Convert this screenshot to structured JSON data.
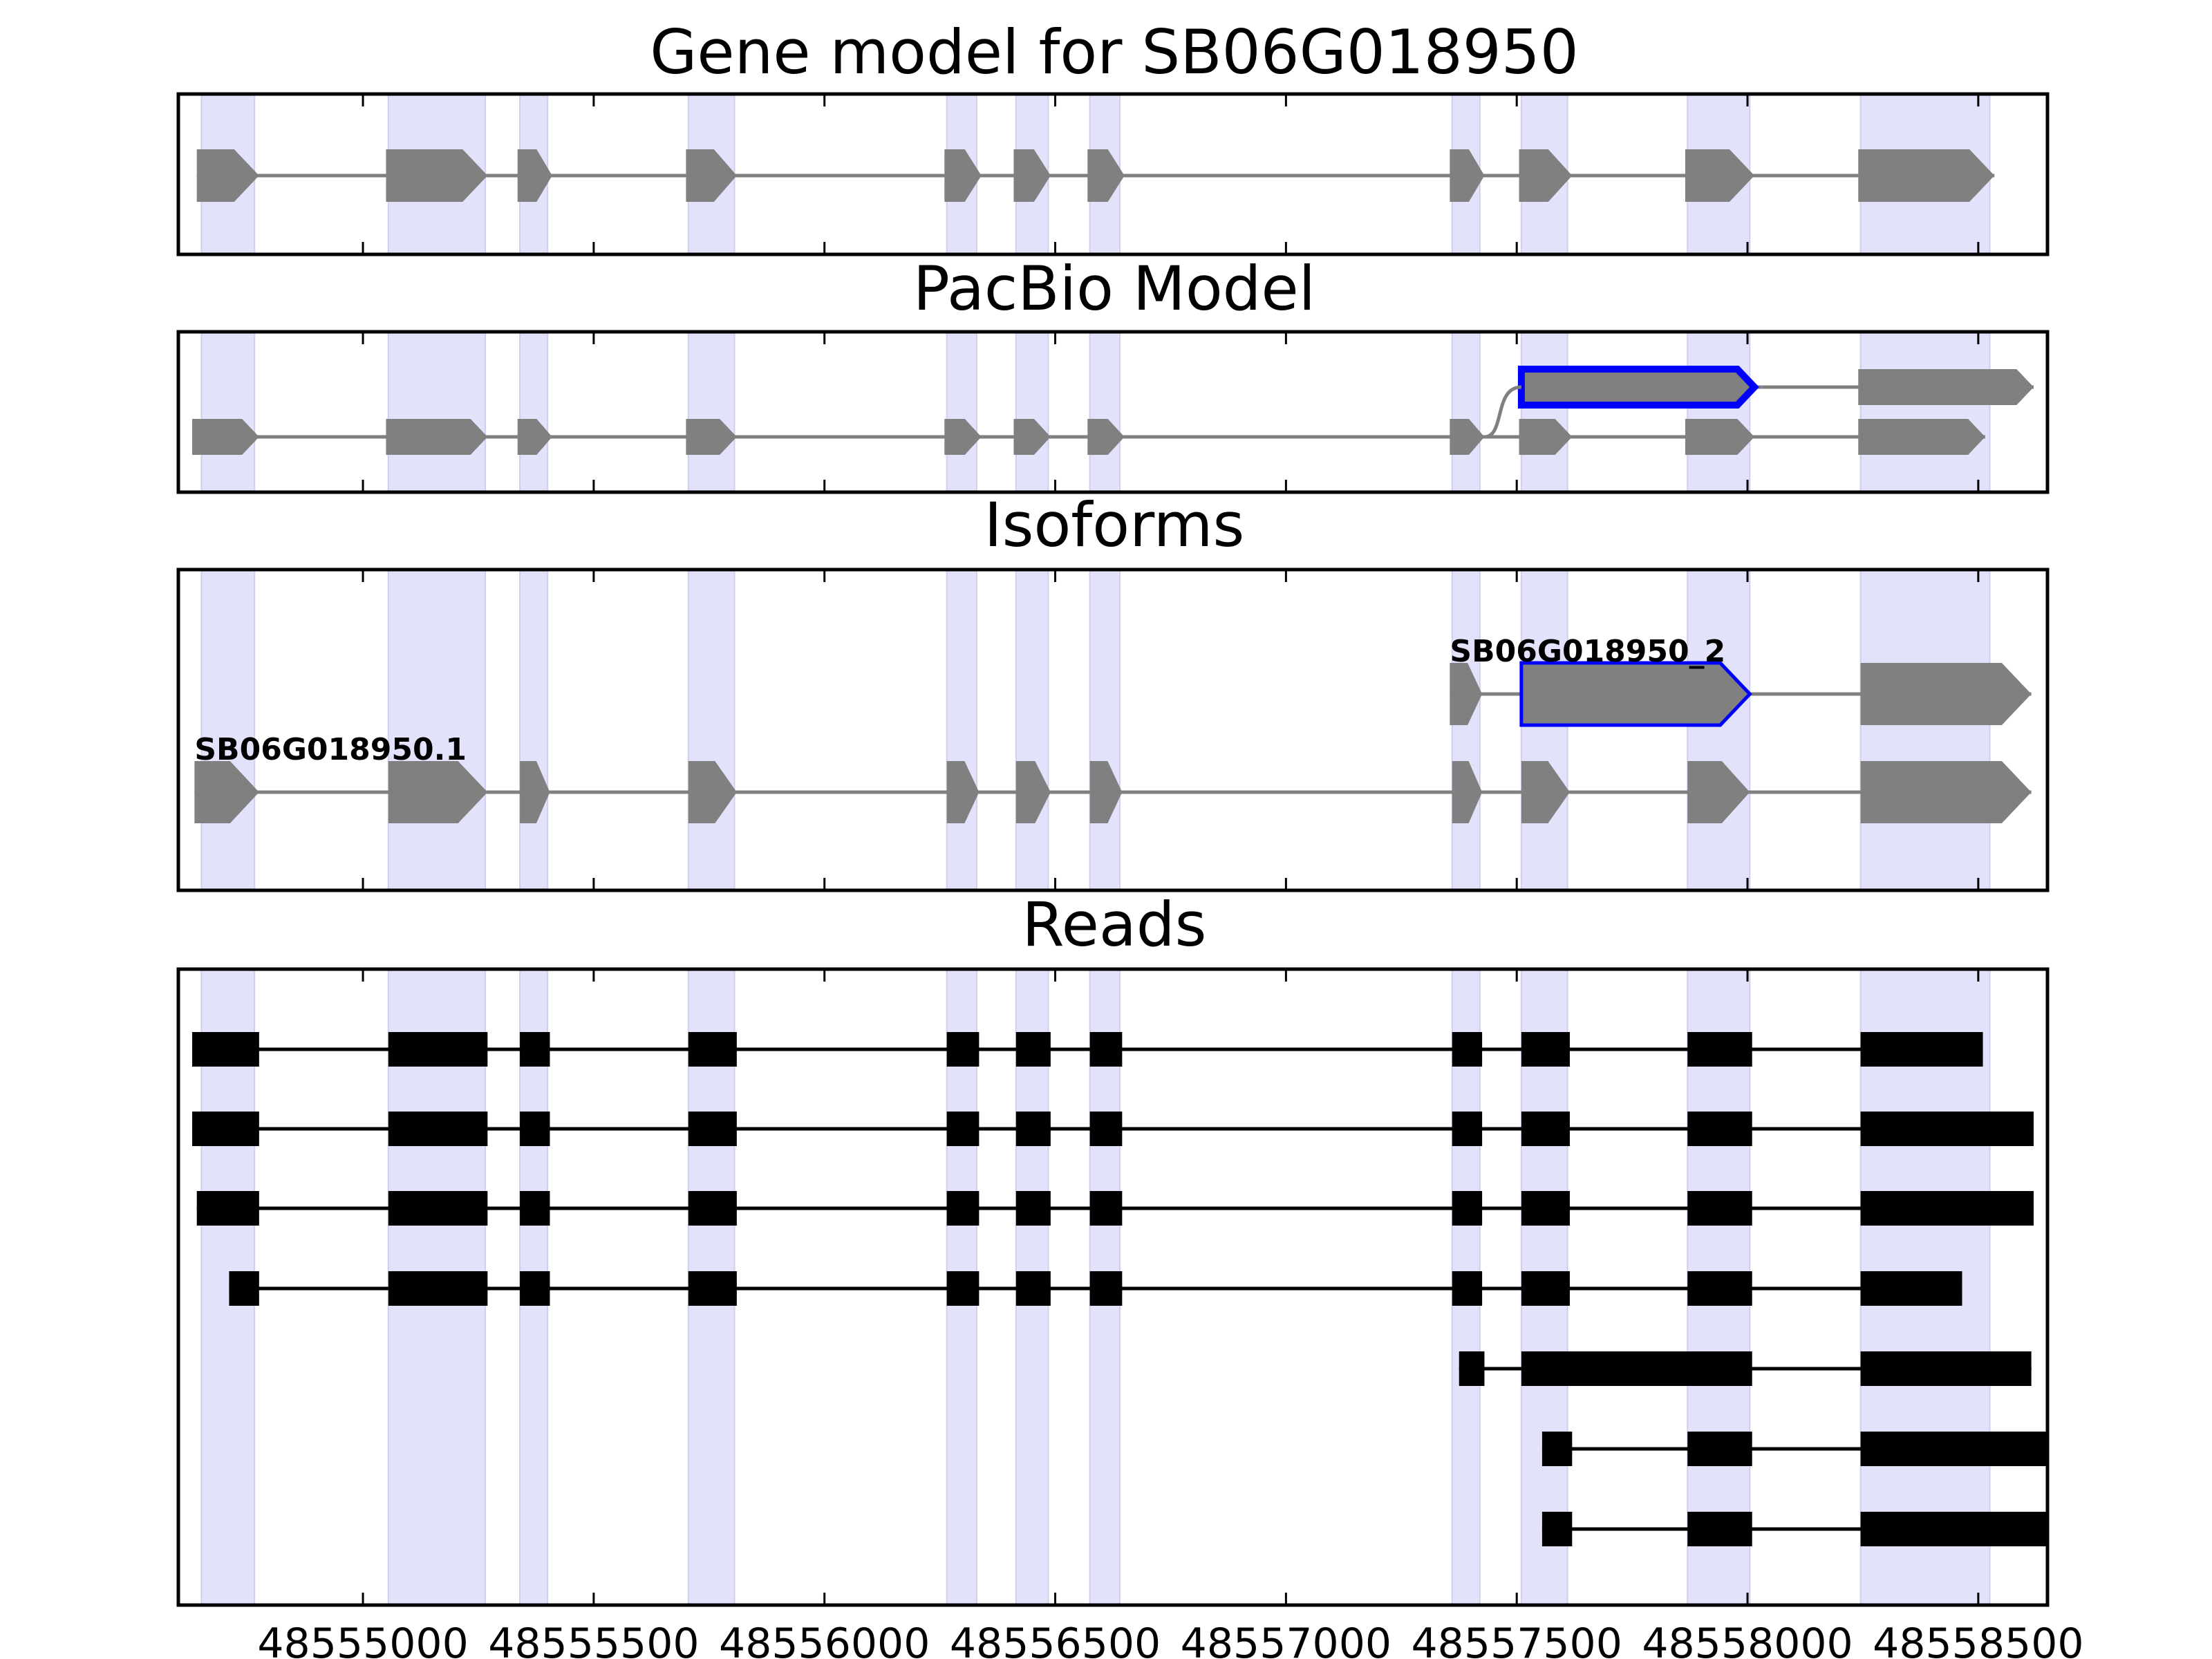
{
  "chart_data": {
    "type": "diagram",
    "x_axis": {
      "range": [
        48554600,
        48558650
      ],
      "ticks": [
        48555000,
        48555500,
        48556000,
        48556500,
        48557000,
        48557500,
        48558000,
        48558500
      ],
      "tick_labels": [
        "48555000",
        "48555500",
        "48556000",
        "48556500",
        "48557000",
        "48557500",
        "48558000",
        "48558500"
      ]
    },
    "colors": {
      "exon_region": "#e2e2fb",
      "gene_feature": "#808080",
      "highlight_outline": "#0000ff",
      "read": "#000000",
      "frame": "#000000"
    },
    "exon_regions": [
      [
        48554650,
        48554765
      ],
      [
        48555055,
        48555265
      ],
      [
        48555340,
        48555400
      ],
      [
        48555705,
        48555805
      ],
      [
        48556265,
        48556330
      ],
      [
        48556415,
        48556485
      ],
      [
        48556575,
        48556640
      ],
      [
        48557360,
        48557420
      ],
      [
        48557510,
        48557610
      ],
      [
        48557870,
        48558005
      ],
      [
        48558245,
        48558525
      ]
    ],
    "panels": [
      {
        "id": "gene-model",
        "title": "Gene model for SB06G018950",
        "tracks": [
          {
            "label": "",
            "highlight": [],
            "exons": [
              [
                48554640,
                48554775
              ],
              [
                48555050,
                48555270
              ],
              [
                48555335,
                48555410
              ],
              [
                48555700,
                48555810
              ],
              [
                48556260,
                48556340
              ],
              [
                48556410,
                48556490
              ],
              [
                48556570,
                48556650
              ],
              [
                48557355,
                48557430
              ],
              [
                48557505,
                48557620
              ],
              [
                48557865,
                48558015
              ],
              [
                48558240,
                48558535
              ]
            ]
          }
        ]
      },
      {
        "id": "pacbio-model",
        "title": "PacBio Model",
        "tracks": [
          {
            "label": "",
            "highlight": [
              0
            ],
            "exons": [
              [
                48557510,
                48558015
              ],
              [
                48558240,
                48558620
              ]
            ]
          },
          {
            "label": "",
            "highlight": [],
            "exons": [
              [
                48554630,
                48554775
              ],
              [
                48555050,
                48555270
              ],
              [
                48555335,
                48555410
              ],
              [
                48555700,
                48555810
              ],
              [
                48556260,
                48556340
              ],
              [
                48556410,
                48556490
              ],
              [
                48556570,
                48556650
              ],
              [
                48557355,
                48557430
              ],
              [
                48557505,
                48557620
              ],
              [
                48557865,
                48558015
              ],
              [
                48558240,
                48558515
              ]
            ]
          }
        ]
      },
      {
        "id": "isoforms",
        "title": "Isoforms",
        "tracks": [
          {
            "label": "SB06G018950_2",
            "highlight": [
              1
            ],
            "exons": [
              [
                48557355,
                48557425
              ],
              [
                48557510,
                48558005
              ],
              [
                48558245,
                48558615
              ]
            ]
          },
          {
            "label": "SB06G018950.1",
            "highlight": [],
            "exons": [
              [
                48554635,
                48554775
              ],
              [
                48555055,
                48555270
              ],
              [
                48555340,
                48555405
              ],
              [
                48555705,
                48555810
              ],
              [
                48556265,
                48556335
              ],
              [
                48556415,
                48556490
              ],
              [
                48556575,
                48556645
              ],
              [
                48557360,
                48557425
              ],
              [
                48557510,
                48557615
              ],
              [
                48557870,
                48558005
              ],
              [
                48558245,
                48558615
              ]
            ]
          }
        ]
      },
      {
        "id": "reads",
        "title": "Reads",
        "reads": [
          [
            [
              48554630,
              48554775
            ],
            [
              48555055,
              48555270
            ],
            [
              48555340,
              48555405
            ],
            [
              48555705,
              48555810
            ],
            [
              48556265,
              48556335
            ],
            [
              48556415,
              48556490
            ],
            [
              48556575,
              48556645
            ],
            [
              48557360,
              48557425
            ],
            [
              48557510,
              48557615
            ],
            [
              48557870,
              48558010
            ],
            [
              48558245,
              48558510
            ]
          ],
          [
            [
              48554630,
              48554775
            ],
            [
              48555055,
              48555270
            ],
            [
              48555340,
              48555405
            ],
            [
              48555705,
              48555810
            ],
            [
              48556265,
              48556335
            ],
            [
              48556415,
              48556490
            ],
            [
              48556575,
              48556645
            ],
            [
              48557360,
              48557425
            ],
            [
              48557510,
              48557615
            ],
            [
              48557870,
              48558010
            ],
            [
              48558245,
              48558620
            ]
          ],
          [
            [
              48554640,
              48554775
            ],
            [
              48555055,
              48555270
            ],
            [
              48555340,
              48555405
            ],
            [
              48555705,
              48555810
            ],
            [
              48556265,
              48556335
            ],
            [
              48556415,
              48556490
            ],
            [
              48556575,
              48556645
            ],
            [
              48557360,
              48557425
            ],
            [
              48557510,
              48557615
            ],
            [
              48557870,
              48558010
            ],
            [
              48558245,
              48558620
            ]
          ],
          [
            [
              48554710,
              48554775
            ],
            [
              48555055,
              48555270
            ],
            [
              48555340,
              48555405
            ],
            [
              48555705,
              48555810
            ],
            [
              48556265,
              48556335
            ],
            [
              48556415,
              48556490
            ],
            [
              48556575,
              48556645
            ],
            [
              48557360,
              48557425
            ],
            [
              48557510,
              48557615
            ],
            [
              48557870,
              48558010
            ],
            [
              48558245,
              48558465
            ]
          ],
          [
            [
              48557375,
              48557430
            ],
            [
              48557510,
              48558010
            ],
            [
              48558245,
              48558615
            ]
          ],
          [
            [
              48557555,
              48557620
            ],
            [
              48557870,
              48558010
            ],
            [
              48558245,
              48558650
            ]
          ],
          [
            [
              48557555,
              48557620
            ],
            [
              48557870,
              48558010
            ],
            [
              48558245,
              48558650
            ]
          ]
        ]
      }
    ]
  }
}
